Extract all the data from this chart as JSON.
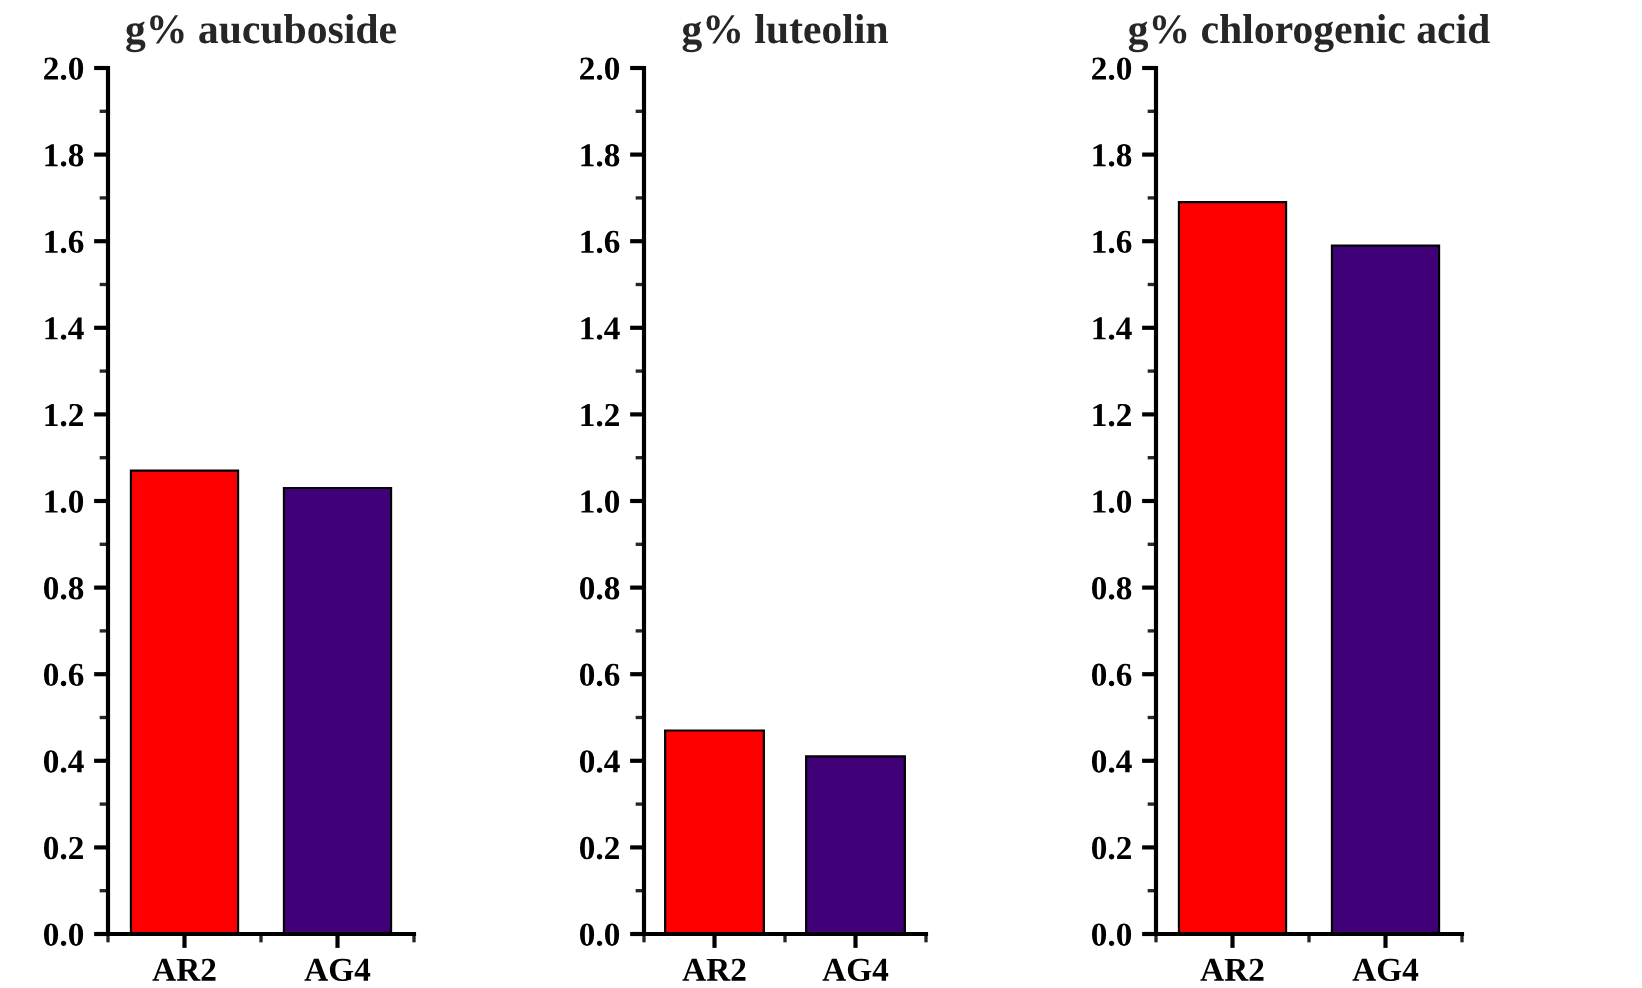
{
  "chart_data": [
    {
      "type": "bar",
      "title": "g% aucuboside",
      "categories": [
        "AR2",
        "AG4"
      ],
      "values": [
        1.07,
        1.03
      ],
      "colors": [
        "#ff0000",
        "#400078"
      ],
      "ylim": [
        0,
        2.0
      ],
      "yticks": [
        {
          "value": 0,
          "label": "0.0"
        },
        {
          "value": 0.2,
          "label": "0.2"
        },
        {
          "value": 0.4,
          "label": "0.4"
        },
        {
          "value": 0.6,
          "label": "0.6"
        },
        {
          "value": 0.8,
          "label": "0.8"
        },
        {
          "value": 1.0,
          "label": "1.0"
        },
        {
          "value": 1.2,
          "label": "1.2"
        },
        {
          "value": 1.4,
          "label": "1.4"
        },
        {
          "value": 1.6,
          "label": "1.6"
        },
        {
          "value": 1.8,
          "label": "1.8"
        },
        {
          "value": 2.0,
          "label": "2.0"
        }
      ]
    },
    {
      "type": "bar",
      "title": "g% luteolin",
      "categories": [
        "AR2",
        "AG4"
      ],
      "values": [
        0.47,
        0.41
      ],
      "colors": [
        "#ff0000",
        "#400078"
      ],
      "ylim": [
        0,
        2.0
      ],
      "yticks": [
        {
          "value": 0,
          "label": "0.0"
        },
        {
          "value": 0.2,
          "label": "0.2"
        },
        {
          "value": 0.4,
          "label": "0.4"
        },
        {
          "value": 0.6,
          "label": "0.6"
        },
        {
          "value": 0.8,
          "label": "0.8"
        },
        {
          "value": 1.0,
          "label": "1.0"
        },
        {
          "value": 1.2,
          "label": "1.2"
        },
        {
          "value": 1.4,
          "label": "1.4"
        },
        {
          "value": 1.6,
          "label": "1.6"
        },
        {
          "value": 1.8,
          "label": "1.8"
        },
        {
          "value": 2.0,
          "label": "2.0"
        }
      ]
    },
    {
      "type": "bar",
      "title": "g% chlorogenic acid",
      "categories": [
        "AR2",
        "AG4"
      ],
      "values": [
        1.69,
        1.59
      ],
      "colors": [
        "#ff0000",
        "#400078"
      ],
      "ylim": [
        0,
        2.0
      ],
      "yticks": [
        {
          "value": 0,
          "label": "0.0"
        },
        {
          "value": 0.2,
          "label": "0.2"
        },
        {
          "value": 0.4,
          "label": "0.4"
        },
        {
          "value": 0.6,
          "label": "0.6"
        },
        {
          "value": 0.8,
          "label": "0.8"
        },
        {
          "value": 1.0,
          "label": "1.0"
        },
        {
          "value": 1.2,
          "label": "1.2"
        },
        {
          "value": 1.4,
          "label": "1.4"
        },
        {
          "value": 1.6,
          "label": "1.6"
        },
        {
          "value": 1.8,
          "label": "1.8"
        },
        {
          "value": 2.0,
          "label": "2.0"
        }
      ]
    }
  ]
}
